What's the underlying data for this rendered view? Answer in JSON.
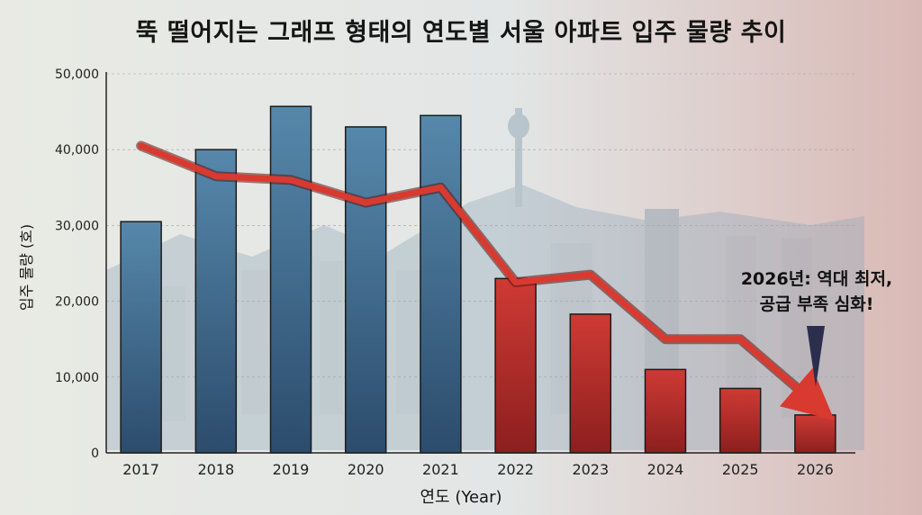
{
  "chart_data": {
    "type": "bar",
    "title": "뚝 떨어지는 그래프 형태의 연도별 서울 아파트 입주 물량 추이",
    "xlabel": "연도 (Year)",
    "ylabel": "입주 물량 (호)",
    "categories": [
      "2017",
      "2018",
      "2019",
      "2020",
      "2021",
      "2022",
      "2023",
      "2024",
      "2025",
      "2026"
    ],
    "values": [
      30500,
      40000,
      45700,
      43000,
      44500,
      23000,
      18300,
      11000,
      8500,
      5000
    ],
    "trend_line": [
      40500,
      36500,
      36000,
      33000,
      35000,
      22500,
      23500,
      15000,
      15000,
      6500
    ],
    "ylim": [
      0,
      50000
    ],
    "yticks": [
      "0",
      "10,000",
      "20,000",
      "30,000",
      "40,000",
      "50,000"
    ],
    "annotation": "2026년: 역대 최저,\n공급 부족 심화!",
    "grid": true,
    "colors": {
      "blue_bar": "#4a7898",
      "red_bar": "#c0302c",
      "trend": "#d93a30",
      "background": "#eeeee8"
    }
  }
}
